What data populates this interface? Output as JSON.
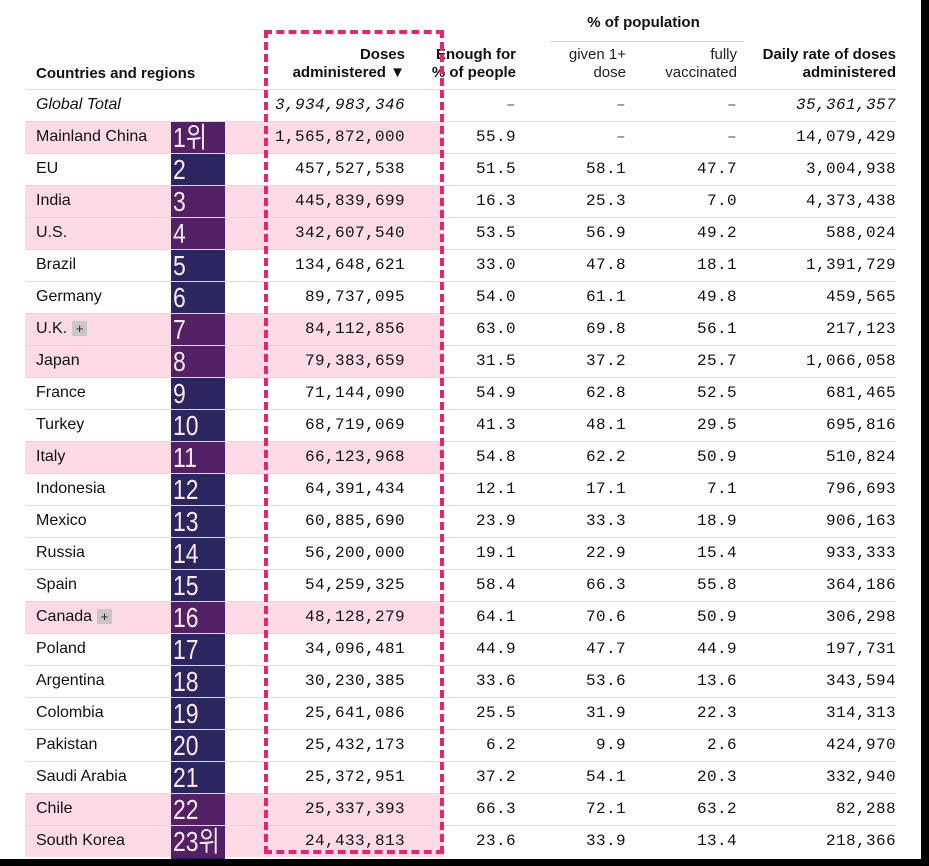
{
  "table": {
    "headers": {
      "country": "Countries and regions",
      "doses_line1": "Doses",
      "doses_line2": "administered",
      "sort_indicator": "▼",
      "enough_line1": "Enough for",
      "enough_line2": "% of people",
      "population_group": "% of population",
      "given_line1": "given 1+",
      "given_line2": "dose",
      "fully_line1": "fully",
      "fully_line2": "vaccinated",
      "daily_line1": "Daily rate of doses",
      "daily_line2": "administered"
    },
    "global": {
      "name": "Global Total",
      "doses": "3,934,983,346",
      "enough": "–",
      "one_dose": "–",
      "fully": "–",
      "daily": "35,361,357"
    },
    "rows": [
      {
        "rank": "1위",
        "name": "Mainland China",
        "doses": "1,565,872,000",
        "enough": "55.9",
        "one_dose": "–",
        "fully": "–",
        "daily": "14,079,429",
        "highlight": true,
        "expandable": false
      },
      {
        "rank": "2",
        "name": "EU",
        "doses": "457,527,538",
        "enough": "51.5",
        "one_dose": "58.1",
        "fully": "47.7",
        "daily": "3,004,938",
        "highlight": false,
        "expandable": false
      },
      {
        "rank": "3",
        "name": "India",
        "doses": "445,839,699",
        "enough": "16.3",
        "one_dose": "25.3",
        "fully": "7.0",
        "daily": "4,373,438",
        "highlight": true,
        "expandable": false
      },
      {
        "rank": "4",
        "name": "U.S.",
        "doses": "342,607,540",
        "enough": "53.5",
        "one_dose": "56.9",
        "fully": "49.2",
        "daily": "588,024",
        "highlight": true,
        "expandable": false
      },
      {
        "rank": "5",
        "name": "Brazil",
        "doses": "134,648,621",
        "enough": "33.0",
        "one_dose": "47.8",
        "fully": "18.1",
        "daily": "1,391,729",
        "highlight": false,
        "expandable": false
      },
      {
        "rank": "6",
        "name": "Germany",
        "doses": "89,737,095",
        "enough": "54.0",
        "one_dose": "61.1",
        "fully": "49.8",
        "daily": "459,565",
        "highlight": false,
        "expandable": false
      },
      {
        "rank": "7",
        "name": "U.K.",
        "doses": "84,112,856",
        "enough": "63.0",
        "one_dose": "69.8",
        "fully": "56.1",
        "daily": "217,123",
        "highlight": true,
        "expandable": true
      },
      {
        "rank": "8",
        "name": "Japan",
        "doses": "79,383,659",
        "enough": "31.5",
        "one_dose": "37.2",
        "fully": "25.7",
        "daily": "1,066,058",
        "highlight": true,
        "expandable": false
      },
      {
        "rank": "9",
        "name": "France",
        "doses": "71,144,090",
        "enough": "54.9",
        "one_dose": "62.8",
        "fully": "52.5",
        "daily": "681,465",
        "highlight": false,
        "expandable": false
      },
      {
        "rank": "10",
        "name": "Turkey",
        "doses": "68,719,069",
        "enough": "41.3",
        "one_dose": "48.1",
        "fully": "29.5",
        "daily": "695,816",
        "highlight": false,
        "expandable": false
      },
      {
        "rank": "11",
        "name": "Italy",
        "doses": "66,123,968",
        "enough": "54.8",
        "one_dose": "62.2",
        "fully": "50.9",
        "daily": "510,824",
        "highlight": true,
        "expandable": false
      },
      {
        "rank": "12",
        "name": "Indonesia",
        "doses": "64,391,434",
        "enough": "12.1",
        "one_dose": "17.1",
        "fully": "7.1",
        "daily": "796,693",
        "highlight": false,
        "expandable": false
      },
      {
        "rank": "13",
        "name": "Mexico",
        "doses": "60,885,690",
        "enough": "23.9",
        "one_dose": "33.3",
        "fully": "18.9",
        "daily": "906,163",
        "highlight": false,
        "expandable": false
      },
      {
        "rank": "14",
        "name": "Russia",
        "doses": "56,200,000",
        "enough": "19.1",
        "one_dose": "22.9",
        "fully": "15.4",
        "daily": "933,333",
        "highlight": false,
        "expandable": false
      },
      {
        "rank": "15",
        "name": "Spain",
        "doses": "54,259,325",
        "enough": "58.4",
        "one_dose": "66.3",
        "fully": "55.8",
        "daily": "364,186",
        "highlight": false,
        "expandable": false
      },
      {
        "rank": "16",
        "name": "Canada",
        "doses": "48,128,279",
        "enough": "64.1",
        "one_dose": "70.6",
        "fully": "50.9",
        "daily": "306,298",
        "highlight": true,
        "expandable": true
      },
      {
        "rank": "17",
        "name": "Poland",
        "doses": "34,096,481",
        "enough": "44.9",
        "one_dose": "47.7",
        "fully": "44.9",
        "daily": "197,731",
        "highlight": false,
        "expandable": false
      },
      {
        "rank": "18",
        "name": "Argentina",
        "doses": "30,230,385",
        "enough": "33.6",
        "one_dose": "53.6",
        "fully": "13.6",
        "daily": "343,594",
        "highlight": false,
        "expandable": false
      },
      {
        "rank": "19",
        "name": "Colombia",
        "doses": "25,641,086",
        "enough": "25.5",
        "one_dose": "31.9",
        "fully": "22.3",
        "daily": "314,313",
        "highlight": false,
        "expandable": false
      },
      {
        "rank": "20",
        "name": "Pakistan",
        "doses": "25,432,173",
        "enough": "6.2",
        "one_dose": "9.9",
        "fully": "2.6",
        "daily": "424,970",
        "highlight": false,
        "expandable": false
      },
      {
        "rank": "21",
        "name": "Saudi Arabia",
        "doses": "25,372,951",
        "enough": "37.2",
        "one_dose": "54.1",
        "fully": "20.3",
        "daily": "332,940",
        "highlight": false,
        "expandable": false
      },
      {
        "rank": "22",
        "name": "Chile",
        "doses": "25,337,393",
        "enough": "66.3",
        "one_dose": "72.1",
        "fully": "63.2",
        "daily": "82,288",
        "highlight": true,
        "expandable": false
      },
      {
        "rank": "23위",
        "name": "South Korea",
        "doses": "24,433,813",
        "enough": "23.6",
        "one_dose": "33.9",
        "fully": "13.4",
        "daily": "218,366",
        "highlight": true,
        "expandable": false
      }
    ]
  },
  "plus_icon_glyph": "+",
  "colors": {
    "highlight_row": "#fcdbe6",
    "rank_strip": "#2b2560",
    "rank_strip_highlight": "#522064",
    "rank_text": "#fde9ef",
    "dashed_box": "#e5266f"
  }
}
